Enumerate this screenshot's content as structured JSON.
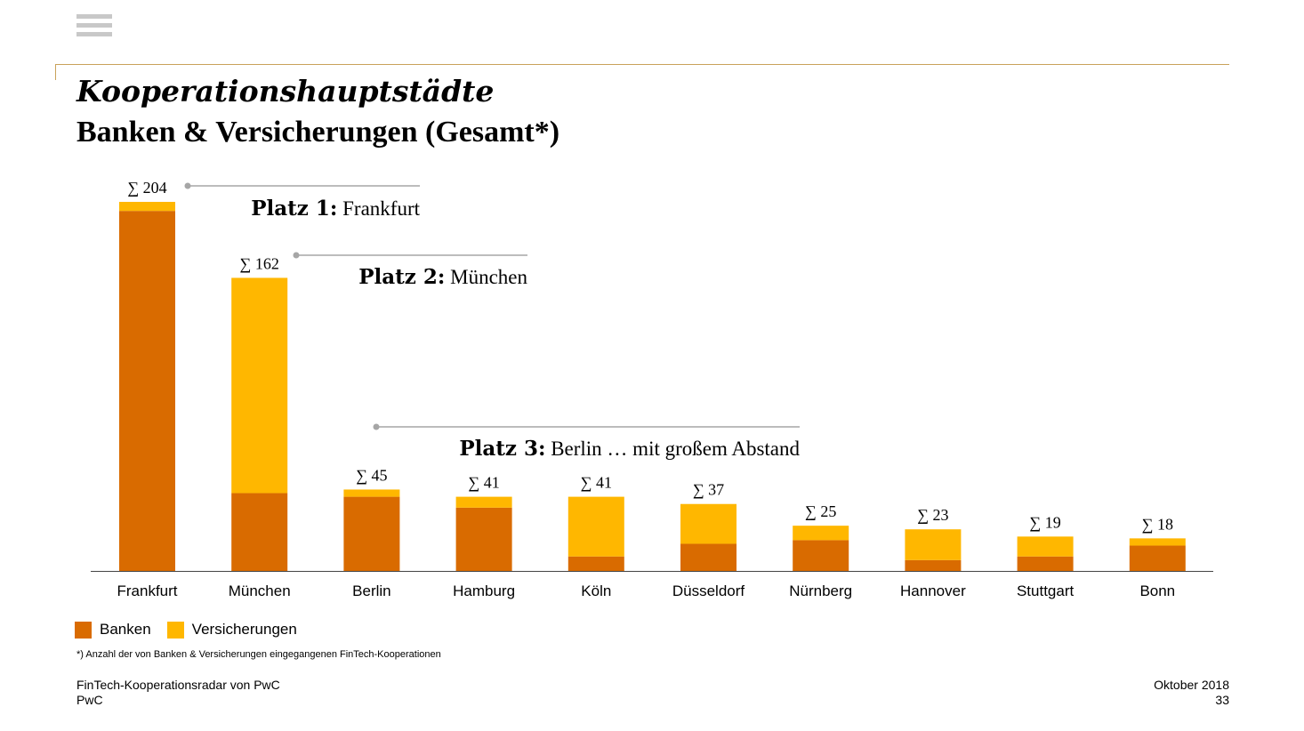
{
  "header": {
    "title": "Kooperationshauptstädte",
    "subtitle": "Banken & Versicherungen (Gesamt*)"
  },
  "chart_data": {
    "type": "bar",
    "stacked": true,
    "categories": [
      "Frankfurt",
      "München",
      "Berlin",
      "Hamburg",
      "Köln",
      "Düsseldorf",
      "Nürnberg",
      "Hannover",
      "Stuttgart",
      "Bonn"
    ],
    "series": [
      {
        "name": "Banken",
        "color": "#d96b00",
        "values": [
          199,
          43,
          41,
          35,
          8,
          15,
          17,
          6,
          8,
          14
        ]
      },
      {
        "name": "Versicherungen",
        "color": "#ffb700",
        "values": [
          5,
          119,
          4,
          6,
          33,
          22,
          8,
          17,
          11,
          4
        ]
      }
    ],
    "totals": [
      204,
      162,
      45,
      41,
      41,
      37,
      25,
      23,
      19,
      18
    ],
    "total_labels": [
      "∑ 204",
      "∑ 162",
      "∑ 45",
      "∑ 41",
      "∑ 41",
      "∑ 37",
      "∑ 25",
      "∑ 23",
      "∑ 19",
      "∑ 18"
    ],
    "ylim": [
      0,
      204
    ],
    "annotations": [
      {
        "rank": "Platz 1:",
        "text": " Frankfurt",
        "category_index": 0
      },
      {
        "rank": "Platz 2:",
        "text": " München",
        "category_index": 1
      },
      {
        "rank": "Platz 3:",
        "text": " Berlin … mit großem Abstand",
        "category_index": 2
      }
    ],
    "legend_position": "bottom-left",
    "grid": false
  },
  "legend": {
    "items": [
      {
        "label": "Banken",
        "color": "#d96b00"
      },
      {
        "label": "Versicherungen",
        "color": "#ffb700"
      }
    ]
  },
  "footnote": "*) Anzahl der von Banken & Versicherungen eingegangenen FinTech-Kooperationen",
  "footer": {
    "source": "FinTech-Kooperationsradar von PwC",
    "company": "PwC",
    "date": "Oktober 2018",
    "page": "33"
  }
}
